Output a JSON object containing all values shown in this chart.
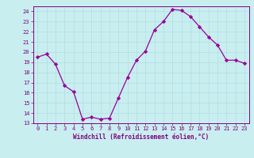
{
  "x": [
    0,
    1,
    2,
    3,
    4,
    5,
    6,
    7,
    8,
    9,
    10,
    11,
    12,
    13,
    14,
    15,
    16,
    17,
    18,
    19,
    20,
    21,
    22,
    23
  ],
  "y": [
    19.5,
    19.8,
    18.8,
    16.7,
    16.1,
    13.4,
    13.6,
    13.4,
    13.5,
    15.5,
    17.5,
    19.2,
    20.1,
    22.2,
    23.0,
    24.2,
    24.1,
    23.5,
    22.5,
    21.5,
    20.7,
    19.2,
    19.2,
    18.9
  ],
  "line_color": "#990099",
  "marker": "D",
  "marker_size": 2.2,
  "bg_color": "#c8eef0",
  "grid_color": "#b0dde0",
  "xlabel": "Windchill (Refroidissement éolien,°C)",
  "ylim": [
    13,
    24.5
  ],
  "yticks": [
    13,
    14,
    15,
    16,
    17,
    18,
    19,
    20,
    21,
    22,
    23,
    24
  ],
  "xticks": [
    0,
    1,
    2,
    3,
    4,
    5,
    6,
    7,
    8,
    9,
    10,
    11,
    12,
    13,
    14,
    15,
    16,
    17,
    18,
    19,
    20,
    21,
    22,
    23
  ],
  "title_color": "#800080",
  "axis_color": "#800080",
  "tick_color": "#800080",
  "linewidth": 0.9
}
